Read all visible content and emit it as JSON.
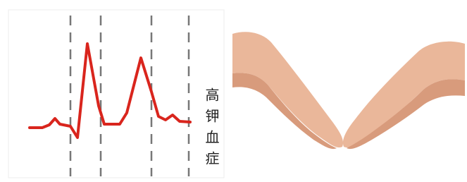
{
  "left_panel": {
    "label": "高钾血症"
  }
}
